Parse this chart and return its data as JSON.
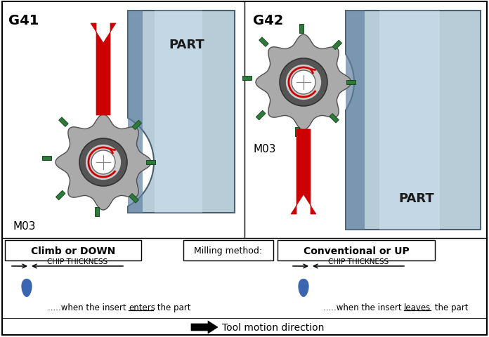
{
  "g41_label": "G41",
  "g42_label": "G42",
  "part_label": "PART",
  "m03_label": "M03",
  "climb_label": "Climb or DOWN",
  "conventional_label": "Conventional or UP",
  "chip_thickness_label": "CHIP THICKNESS",
  "milling_method_label": "Milling method:",
  "tool_motion_label": "Tool motion direction",
  "part_color_light": "#b8ccd8",
  "part_color_dark": "#6080a0",
  "part_border_color": "#4a6070",
  "gear_body_color": "#aaaaaa",
  "gear_inner_color": "#555555",
  "insert_color": "#2d7a3a",
  "rotation_arrow_color": "#cc0000",
  "motion_arrow_color": "#cc0000",
  "background_color": "#ffffff"
}
